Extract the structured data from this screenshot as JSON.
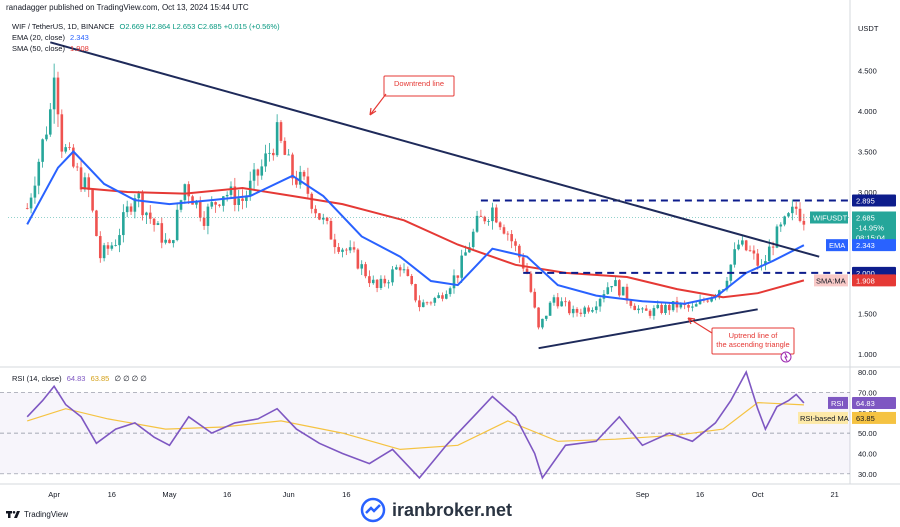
{
  "header": {
    "publisher": "ranadagger published on TradingView.com, Oct 13, 2024 15:44 UTC"
  },
  "legend": {
    "symbol_line": "WIF / TetherUS, 1D, BINANCE",
    "ohlc": "O2.669 H2.864 L2.653 C2.685 +0.015 (+0.56%)",
    "ema_label": "EMA (20, close)",
    "ema_value": "2.343",
    "sma_label": "SMA (50, close)",
    "sma_value": "1.908",
    "rsi_label": "RSI (14, close)",
    "rsi_value": "64.83",
    "rsi_ma_value": "63.85",
    "rsi_extra": "∅ ∅ ∅ ∅"
  },
  "price_axis": {
    "currency": "USDT",
    "ticks": [
      "4.500",
      "4.000",
      "3.500",
      "3.000",
      "2.500",
      "1.500",
      "1.000"
    ]
  },
  "rsi_axis": {
    "ticks": [
      "80.00",
      "70.00",
      "60.00",
      "50.00",
      "40.00",
      "30.00"
    ]
  },
  "time_axis": {
    "ticks": [
      "Apr",
      "16",
      "May",
      "16",
      "Jun",
      "16",
      "Sep",
      "16",
      "Oct",
      "21"
    ]
  },
  "tags": {
    "resistance": "2.895",
    "symbol": "WIFUSDT",
    "last_price": "2.685",
    "change": "-14.95%",
    "countdown": "08:15:04",
    "ema": "EMA",
    "ema_val": "2.343",
    "support": "2.000",
    "sma": "SMA:MA",
    "sma_val": "1.908",
    "rsi": "RSI",
    "rsi_val": "64.83",
    "rsi_ma": "RSI-based MA",
    "rsi_ma_val": "63.85"
  },
  "annotations": {
    "downtrend": "Downtrend line",
    "uptrend": "Uptrend line of the ascending triangle"
  },
  "footer": {
    "brand": "TradingView"
  },
  "watermark": {
    "text": "iranbroker.net"
  },
  "colors": {
    "up": "#26a69a",
    "down": "#ef5350",
    "ema": "#2962ff",
    "sma": "#e53935",
    "trendline": "#1e2a5a",
    "rsi": "#7e57c2",
    "rsi_ma": "#f5c342"
  },
  "chart_data": [
    {
      "type": "candlestick",
      "title": "WIF / TetherUS, 1D, BINANCE",
      "y_unit": "USDT",
      "ylim": [
        0.85,
        5.15
      ],
      "x_period": "late Mar 2024 – Oct 13 2024, daily",
      "close_path": [
        {
          "x": "Mar 25",
          "y": 2.8
        },
        {
          "x": "Mar 28",
          "y": 3.4
        },
        {
          "x": "Mar 31",
          "y": 4.0
        },
        {
          "x": "Apr 1",
          "y": 4.6
        },
        {
          "x": "Apr 3",
          "y": 3.6
        },
        {
          "x": "Apr 6",
          "y": 3.3
        },
        {
          "x": "Apr 10",
          "y": 3.0
        },
        {
          "x": "Apr 13",
          "y": 2.2
        },
        {
          "x": "Apr 17",
          "y": 2.4
        },
        {
          "x": "Apr 22",
          "y": 3.0
        },
        {
          "x": "Apr 27",
          "y": 2.6
        },
        {
          "x": "May 1",
          "y": 2.3
        },
        {
          "x": "May 5",
          "y": 3.1
        },
        {
          "x": "May 10",
          "y": 2.7
        },
        {
          "x": "May 15",
          "y": 3.0
        },
        {
          "x": "May 20",
          "y": 2.9
        },
        {
          "x": "May 25",
          "y": 3.3
        },
        {
          "x": "May 29",
          "y": 3.7
        },
        {
          "x": "Jun 2",
          "y": 3.2
        },
        {
          "x": "Jun 5",
          "y": 3.1
        },
        {
          "x": "Jun 9",
          "y": 2.7
        },
        {
          "x": "Jun 13",
          "y": 2.4
        },
        {
          "x": "Jun 18",
          "y": 2.2
        },
        {
          "x": "Jun 24",
          "y": 1.8
        },
        {
          "x": "Jun 30",
          "y": 2.1
        },
        {
          "x": "Jul 5",
          "y": 1.6
        },
        {
          "x": "Jul 10",
          "y": 1.7
        },
        {
          "x": "Jul 15",
          "y": 2.0
        },
        {
          "x": "Jul 20",
          "y": 2.6
        },
        {
          "x": "Jul 24",
          "y": 2.8
        },
        {
          "x": "Jul 28",
          "y": 2.5
        },
        {
          "x": "Aug 2",
          "y": 2.0
        },
        {
          "x": "Aug 5",
          "y": 1.3
        },
        {
          "x": "Aug 9",
          "y": 1.7
        },
        {
          "x": "Aug 14",
          "y": 1.5
        },
        {
          "x": "Aug 19",
          "y": 1.6
        },
        {
          "x": "Aug 24",
          "y": 1.9
        },
        {
          "x": "Aug 28",
          "y": 1.7
        },
        {
          "x": "Sep 1",
          "y": 1.5
        },
        {
          "x": "Sep 6",
          "y": 1.55
        },
        {
          "x": "Sep 10",
          "y": 1.6
        },
        {
          "x": "Sep 14",
          "y": 1.55
        },
        {
          "x": "Sep 18",
          "y": 1.7
        },
        {
          "x": "Sep 22",
          "y": 1.85
        },
        {
          "x": "Sep 26",
          "y": 2.35
        },
        {
          "x": "Sep 29",
          "y": 2.25
        },
        {
          "x": "Oct 2",
          "y": 2.05
        },
        {
          "x": "Oct 5",
          "y": 2.4
        },
        {
          "x": "Oct 8",
          "y": 2.6
        },
        {
          "x": "Oct 11",
          "y": 2.8
        },
        {
          "x": "Oct 13",
          "y": 2.685
        }
      ],
      "ema20_path": [
        {
          "x": "Mar 25",
          "y": 2.6
        },
        {
          "x": "Apr 2",
          "y": 3.3
        },
        {
          "x": "Apr 6",
          "y": 3.5
        },
        {
          "x": "Apr 14",
          "y": 3.1
        },
        {
          "x": "Apr 22",
          "y": 2.9
        },
        {
          "x": "May 1",
          "y": 2.85
        },
        {
          "x": "May 12",
          "y": 2.9
        },
        {
          "x": "May 22",
          "y": 2.95
        },
        {
          "x": "Jun 2",
          "y": 3.2
        },
        {
          "x": "Jun 10",
          "y": 2.95
        },
        {
          "x": "Jun 20",
          "y": 2.45
        },
        {
          "x": "Jun 30",
          "y": 2.2
        },
        {
          "x": "Jul 8",
          "y": 1.9
        },
        {
          "x": "Jul 15",
          "y": 1.85
        },
        {
          "x": "Jul 24",
          "y": 2.3
        },
        {
          "x": "Aug 2",
          "y": 2.2
        },
        {
          "x": "Aug 10",
          "y": 1.85
        },
        {
          "x": "Aug 20",
          "y": 1.72
        },
        {
          "x": "Sep 1",
          "y": 1.65
        },
        {
          "x": "Sep 12",
          "y": 1.62
        },
        {
          "x": "Sep 20",
          "y": 1.7
        },
        {
          "x": "Sep 28",
          "y": 2.0
        },
        {
          "x": "Oct 5",
          "y": 2.15
        },
        {
          "x": "Oct 13",
          "y": 2.343
        }
      ],
      "sma50_path": [
        {
          "x": "Apr 8",
          "y": 3.05
        },
        {
          "x": "Apr 20",
          "y": 3.0
        },
        {
          "x": "May 5",
          "y": 2.98
        },
        {
          "x": "May 20",
          "y": 3.05
        },
        {
          "x": "Jun 2",
          "y": 2.95
        },
        {
          "x": "Jun 15",
          "y": 2.85
        },
        {
          "x": "Jul 1",
          "y": 2.65
        },
        {
          "x": "Jul 15",
          "y": 2.35
        },
        {
          "x": "Jul 30",
          "y": 2.1
        },
        {
          "x": "Aug 12",
          "y": 2.0
        },
        {
          "x": "Aug 28",
          "y": 1.95
        },
        {
          "x": "Sep 10",
          "y": 1.8
        },
        {
          "x": "Sep 22",
          "y": 1.7
        },
        {
          "x": "Oct 1",
          "y": 1.75
        },
        {
          "x": "Oct 13",
          "y": 1.908
        }
      ],
      "lines": {
        "resistance": 2.895,
        "support": 2.0,
        "downtrend": [
          {
            "x": "Mar 31",
            "y": 4.85
          },
          {
            "x": "Oct 17",
            "y": 2.2
          }
        ],
        "uptrend": [
          {
            "x": "Aug 5",
            "y": 1.07
          },
          {
            "x": "Oct 1",
            "y": 1.55
          }
        ]
      }
    },
    {
      "type": "line",
      "title": "RSI (14, close)",
      "ylim": [
        25,
        82
      ],
      "bands": [
        30,
        50,
        70
      ],
      "rsi_path": [
        {
          "x": "Mar 25",
          "y": 58
        },
        {
          "x": "Mar 29",
          "y": 66
        },
        {
          "x": "Apr 1",
          "y": 73
        },
        {
          "x": "Apr 4",
          "y": 64
        },
        {
          "x": "Apr 8",
          "y": 58
        },
        {
          "x": "Apr 12",
          "y": 45
        },
        {
          "x": "Apr 17",
          "y": 52
        },
        {
          "x": "Apr 22",
          "y": 55
        },
        {
          "x": "Apr 27",
          "y": 48
        },
        {
          "x": "May 1",
          "y": 44
        },
        {
          "x": "May 6",
          "y": 58
        },
        {
          "x": "May 12",
          "y": 50
        },
        {
          "x": "May 18",
          "y": 55
        },
        {
          "x": "May 24",
          "y": 57
        },
        {
          "x": "May 29",
          "y": 62
        },
        {
          "x": "Jun 3",
          "y": 52
        },
        {
          "x": "Jun 9",
          "y": 45
        },
        {
          "x": "Jun 15",
          "y": 40
        },
        {
          "x": "Jun 22",
          "y": 35
        },
        {
          "x": "Jun 28",
          "y": 42
        },
        {
          "x": "Jul 5",
          "y": 28
        },
        {
          "x": "Jul 12",
          "y": 44
        },
        {
          "x": "Jul 20",
          "y": 60
        },
        {
          "x": "Jul 24",
          "y": 68
        },
        {
          "x": "Jul 30",
          "y": 58
        },
        {
          "x": "Aug 4",
          "y": 40
        },
        {
          "x": "Aug 6",
          "y": 28
        },
        {
          "x": "Aug 12",
          "y": 44
        },
        {
          "x": "Aug 20",
          "y": 46
        },
        {
          "x": "Aug 26",
          "y": 58
        },
        {
          "x": "Sep 1",
          "y": 44
        },
        {
          "x": "Sep 8",
          "y": 50
        },
        {
          "x": "Sep 14",
          "y": 46
        },
        {
          "x": "Sep 20",
          "y": 55
        },
        {
          "x": "Sep 24",
          "y": 66
        },
        {
          "x": "Sep 28",
          "y": 80
        },
        {
          "x": "Oct 1",
          "y": 62
        },
        {
          "x": "Oct 3",
          "y": 52
        },
        {
          "x": "Oct 6",
          "y": 63
        },
        {
          "x": "Oct 9",
          "y": 66
        },
        {
          "x": "Oct 11",
          "y": 69
        },
        {
          "x": "Oct 13",
          "y": 64.83
        }
      ],
      "rsi_ma_path": [
        {
          "x": "Mar 25",
          "y": 56
        },
        {
          "x": "Apr 4",
          "y": 62
        },
        {
          "x": "Apr 15",
          "y": 57
        },
        {
          "x": "Apr 30",
          "y": 52
        },
        {
          "x": "May 15",
          "y": 53
        },
        {
          "x": "May 30",
          "y": 56
        },
        {
          "x": "Jun 15",
          "y": 50
        },
        {
          "x": "Jun 30",
          "y": 42
        },
        {
          "x": "Jul 15",
          "y": 44
        },
        {
          "x": "Jul 28",
          "y": 56
        },
        {
          "x": "Aug 10",
          "y": 46
        },
        {
          "x": "Aug 25",
          "y": 47
        },
        {
          "x": "Sep 10",
          "y": 49
        },
        {
          "x": "Sep 22",
          "y": 52
        },
        {
          "x": "Oct 1",
          "y": 65
        },
        {
          "x": "Oct 13",
          "y": 63.85
        }
      ]
    }
  ]
}
